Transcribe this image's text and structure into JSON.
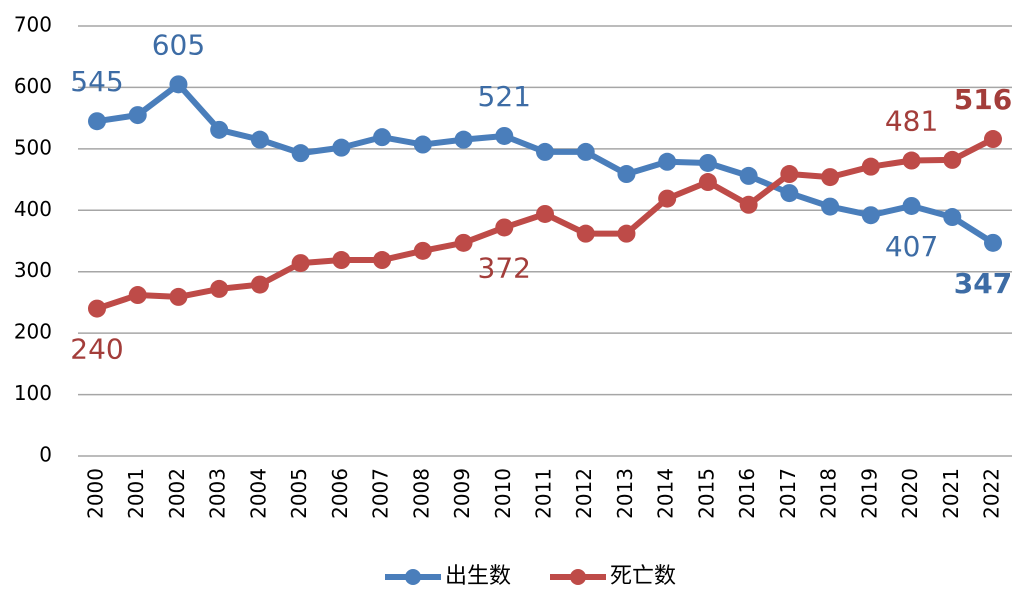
{
  "chart_data": {
    "type": "line",
    "categories": [
      "2000",
      "2001",
      "2002",
      "2003",
      "2004",
      "2005",
      "2006",
      "2007",
      "2008",
      "2009",
      "2010",
      "2011",
      "2012",
      "2013",
      "2014",
      "2015",
      "2016",
      "2017",
      "2018",
      "2019",
      "2020",
      "2021",
      "2022"
    ],
    "series": [
      {
        "name": "出生数",
        "color": "#4a7ebb",
        "label_color": "#3d6ca5",
        "values": [
          545,
          555,
          605,
          531,
          515,
          493,
          502,
          519,
          507,
          515,
          521,
          495,
          495,
          459,
          479,
          477,
          456,
          428,
          406,
          392,
          407,
          389,
          347
        ],
        "labeled": [
          0,
          2,
          10,
          20,
          22
        ]
      },
      {
        "name": "死亡数",
        "color": "#be4b48",
        "label_color": "#a33d3a",
        "values": [
          240,
          262,
          259,
          272,
          279,
          314,
          319,
          319,
          334,
          347,
          372,
          394,
          362,
          362,
          419,
          446,
          409,
          459,
          454,
          471,
          481,
          482,
          516
        ],
        "labeled": [
          0,
          10,
          20,
          22
        ]
      }
    ],
    "ylim": [
      0,
      700
    ],
    "yticks": [
      0,
      100,
      200,
      300,
      400,
      500,
      600,
      700
    ],
    "grid": true,
    "legend": "bottom"
  }
}
